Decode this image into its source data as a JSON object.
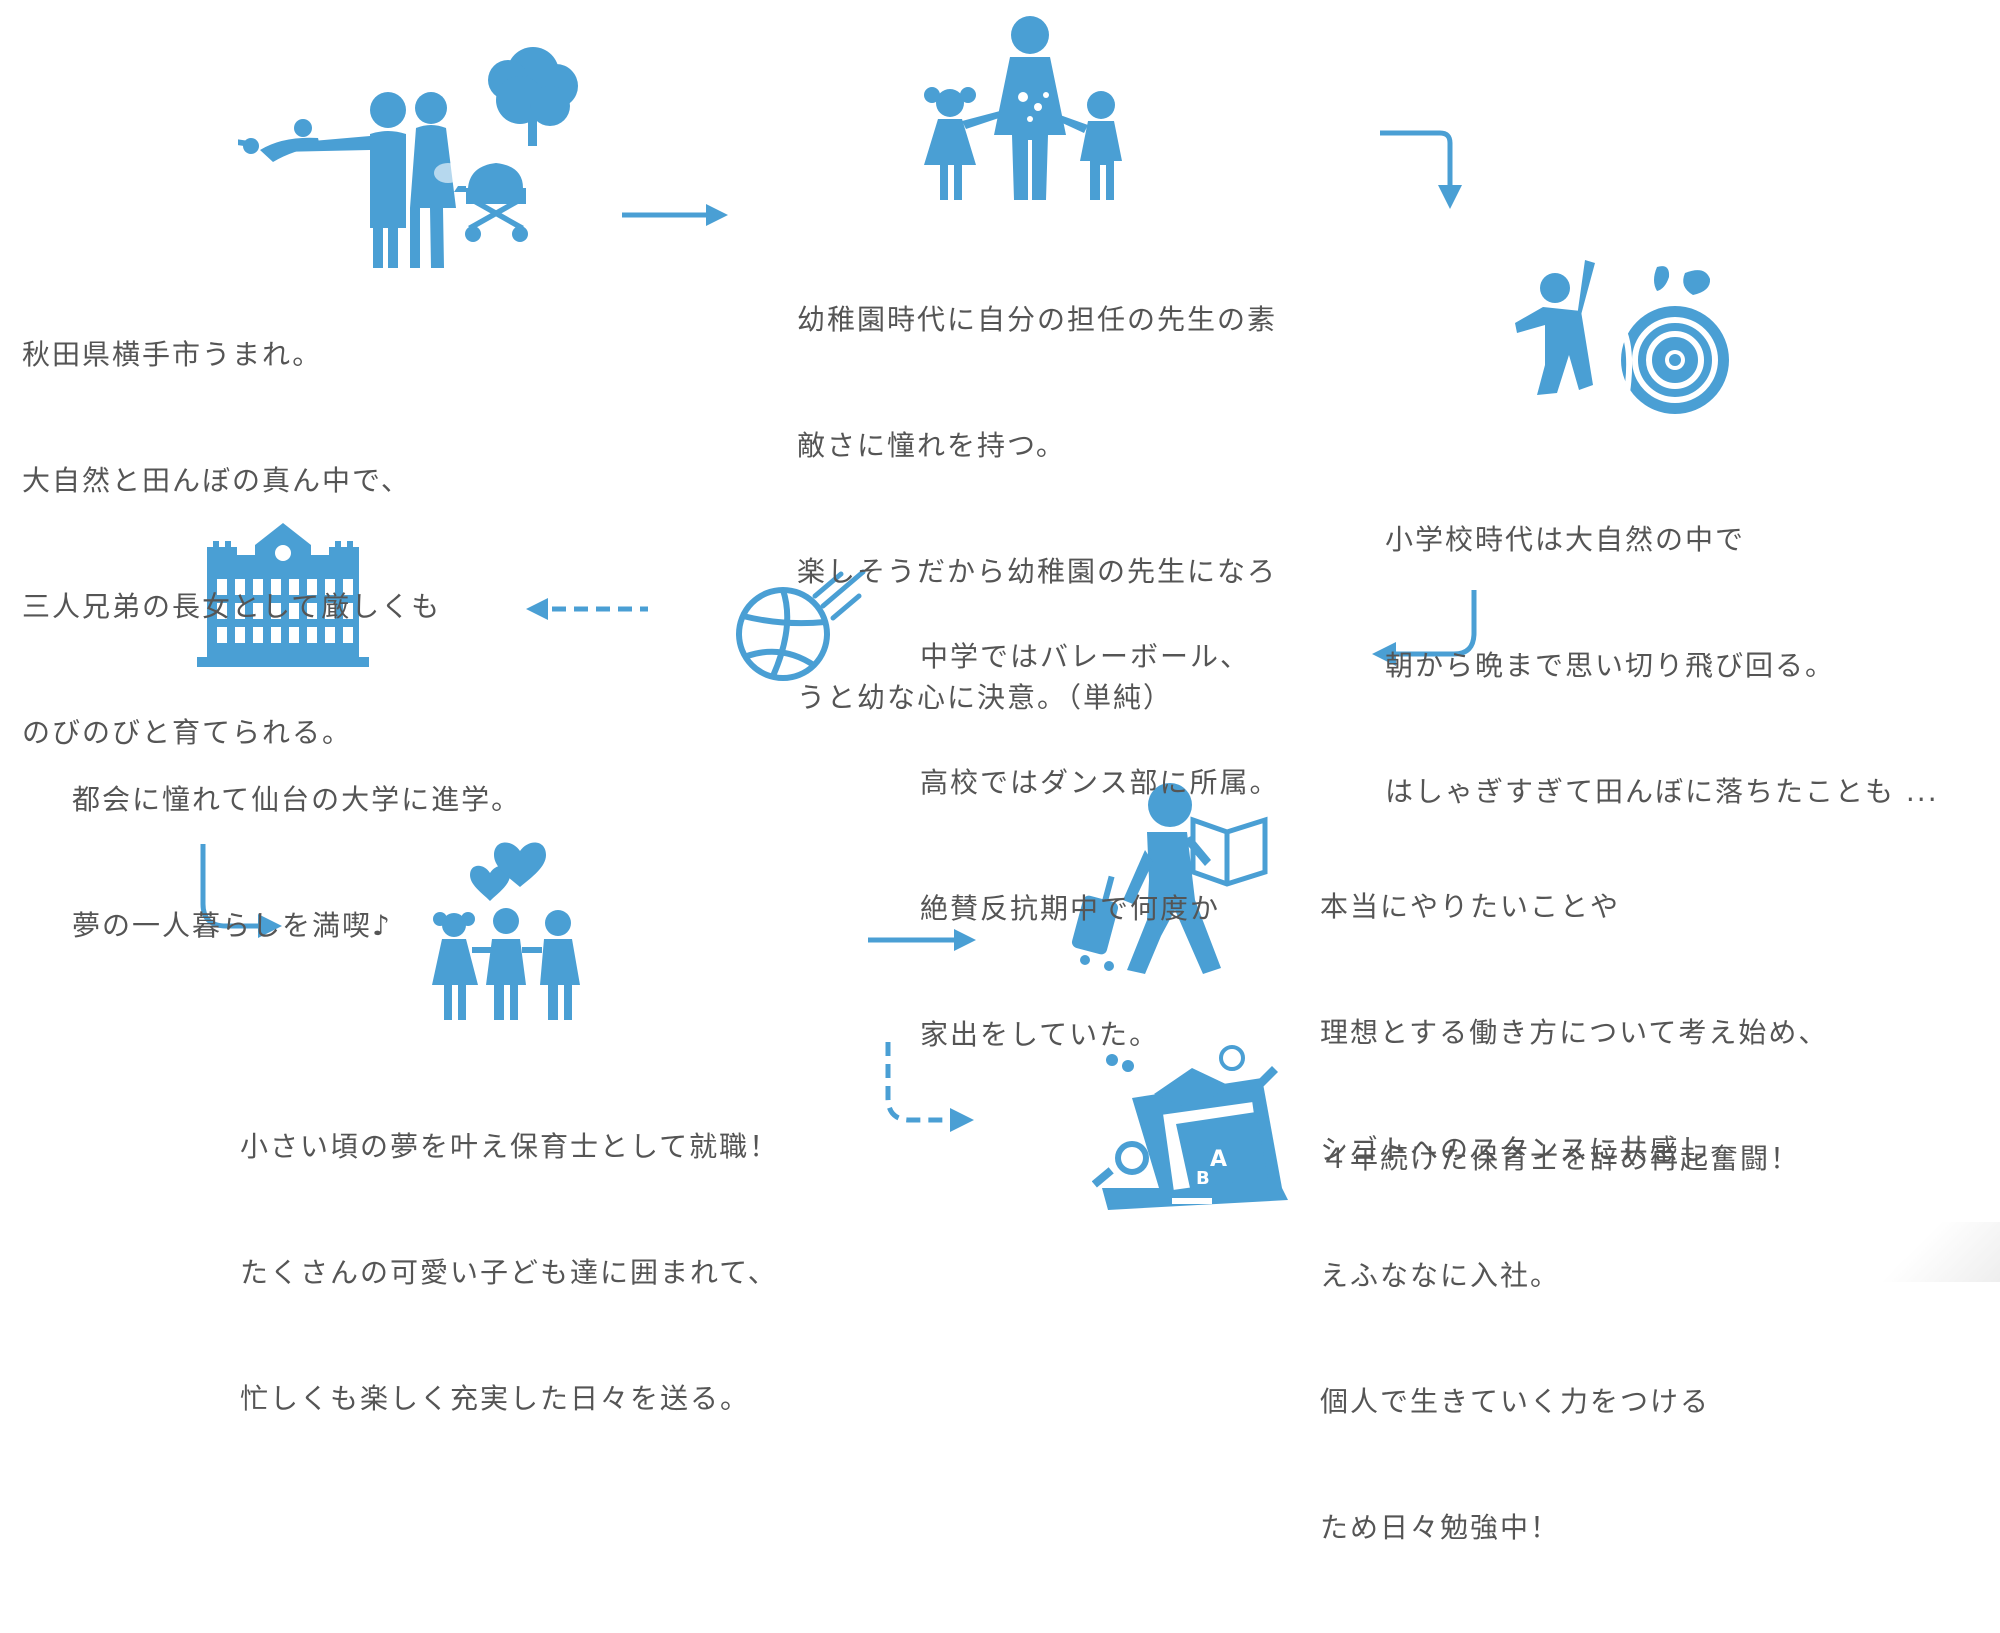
{
  "theme": {
    "accent": "#4a9fd4",
    "text": "#555555"
  },
  "steps": [
    {
      "icon": "family-park-icon",
      "lines": [
        "秋田県横手市うまれ。",
        "大自然と田んぼの真ん中で、",
        "三人兄弟の長女として厳しくも",
        "のびのびと育てられる。"
      ]
    },
    {
      "icon": "teacher-children-icon",
      "lines": [
        "幼稚園時代に自分の担任の先生の素",
        "敵さに憧れを持つ。",
        "楽しそうだから幼稚園の先生になろ",
        "うと幼な心に決意。（単純）"
      ]
    },
    {
      "icon": "child-playing-splash-icon",
      "lines": [
        "小学校時代は大自然の中で",
        "朝から晩まで思い切り飛び回る。",
        "はしゃぎすぎて田んぼに落ちたことも ..."
      ]
    },
    {
      "icon": "volleyball-icon",
      "lines": [
        "中学ではバレーボール、",
        "高校ではダンス部に所属。",
        "絶賛反抗期中で何度か",
        "家出をしていた。"
      ]
    },
    {
      "icon": "university-building-icon",
      "lines": [
        "都会に憧れて仙台の大学に進学。",
        "夢の一人暮らしを満喫♪"
      ]
    },
    {
      "icon": "children-hearts-icon",
      "lines": [
        "小さい頃の夢を叶え保育士として就職！",
        "たくさんの可愛い子ども達に囲まれて、",
        "忙しくも楽しく充実した日々を送る。"
      ]
    },
    {
      "icon": "traveler-book-icon",
      "lines": [
        "本当にやりたいことや",
        "理想とする働き方について考え始め、",
        "４年続けた保育士を辞め再起奮闘！"
      ]
    },
    {
      "icon": "laptop-learning-icon",
      "lines": [
        "シゴトへのスタンスに共感し",
        "えふななに入社。",
        "個人で生きていく力をつける",
        "ため日々勉強中！"
      ]
    }
  ]
}
